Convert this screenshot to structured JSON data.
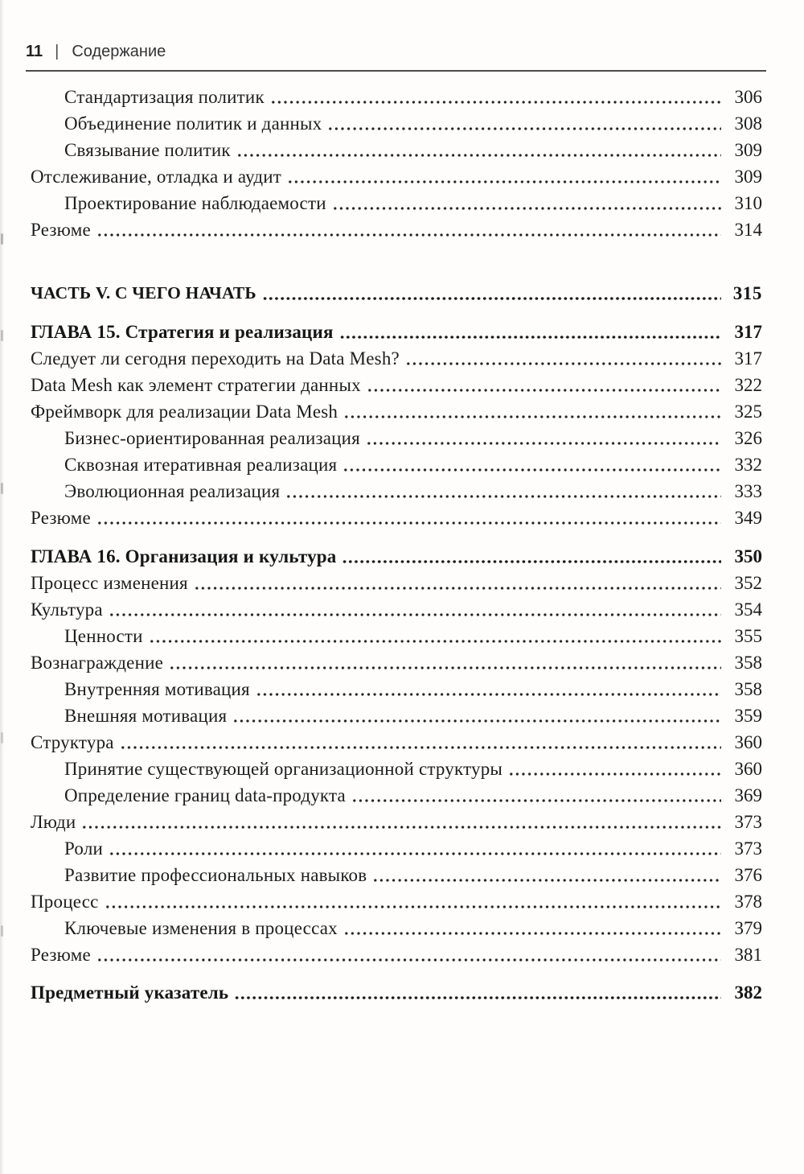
{
  "header": {
    "page_number": "11",
    "separator": "|",
    "title": "Содержание"
  },
  "toc": {
    "entries": [
      {
        "label": "Стандартизация политик",
        "page": "306",
        "level": 1
      },
      {
        "label": "Объединение политик и данных",
        "page": "308",
        "level": 1
      },
      {
        "label": "Связывание политик",
        "page": "309",
        "level": 1
      },
      {
        "label": "Отслеживание, отладка и аудит",
        "page": "309",
        "level": 0
      },
      {
        "label": "Проектирование наблюдаемости",
        "page": "310",
        "level": 1
      },
      {
        "label": "Резюме",
        "page": "314",
        "level": 0
      },
      {
        "label": "ЧАСТЬ V. С ЧЕГО НАЧАТЬ",
        "page": "315",
        "level": 0,
        "style": "part"
      },
      {
        "label": "ГЛАВА 15. Стратегия и реализация",
        "page": "317",
        "level": 0,
        "style": "chapter"
      },
      {
        "label": "Следует ли сегодня переходить на Data Mesh?",
        "page": "317",
        "level": 0
      },
      {
        "label": "Data Mesh как элемент стратегии данных",
        "page": "322",
        "level": 0
      },
      {
        "label": "Фреймворк для реализации Data Mesh",
        "page": "325",
        "level": 0
      },
      {
        "label": "Бизнес-ориентированная реализация",
        "page": "326",
        "level": 1
      },
      {
        "label": "Сквозная итеративная реализация",
        "page": "332",
        "level": 1
      },
      {
        "label": "Эволюционная реализация",
        "page": "333",
        "level": 1
      },
      {
        "label": "Резюме",
        "page": "349",
        "level": 0
      },
      {
        "label": "ГЛАВА 16. Организация и культура",
        "page": "350",
        "level": 0,
        "style": "chapter"
      },
      {
        "label": "Процесс изменения",
        "page": "352",
        "level": 0
      },
      {
        "label": "Культура",
        "page": "354",
        "level": 0
      },
      {
        "label": "Ценности",
        "page": "355",
        "level": 1
      },
      {
        "label": "Вознаграждение",
        "page": "358",
        "level": 0
      },
      {
        "label": "Внутренняя мотивация",
        "page": "358",
        "level": 1
      },
      {
        "label": "Внешняя мотивация",
        "page": "359",
        "level": 1
      },
      {
        "label": "Структура",
        "page": "360",
        "level": 0
      },
      {
        "label": "Принятие существующей организационной структуры",
        "page": "360",
        "level": 1
      },
      {
        "label": "Определение границ data-продукта",
        "page": "369",
        "level": 1
      },
      {
        "label": "Люди",
        "page": "373",
        "level": 0
      },
      {
        "label": "Роли",
        "page": "373",
        "level": 1
      },
      {
        "label": "Развитие профессиональных навыков",
        "page": "376",
        "level": 1
      },
      {
        "label": "Процесс",
        "page": "378",
        "level": 0
      },
      {
        "label": "Ключевые изменения в процессах",
        "page": "379",
        "level": 1
      },
      {
        "label": "Резюме",
        "page": "381",
        "level": 0
      },
      {
        "label": "Предметный указатель",
        "page": "382",
        "level": 0,
        "style": "index"
      }
    ]
  }
}
